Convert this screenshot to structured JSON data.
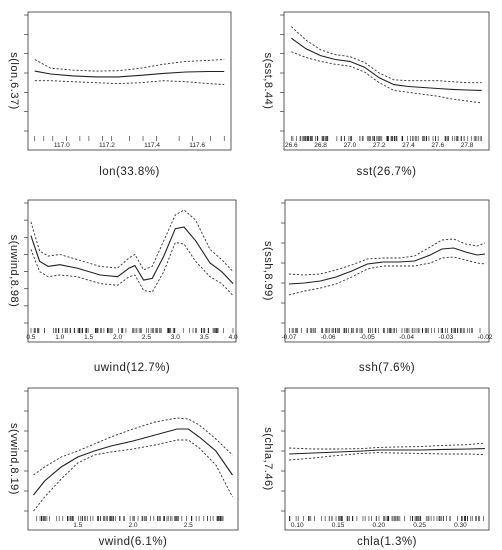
{
  "chart_data": [
    {
      "type": "line",
      "xlabel": "lon(33.8%)",
      "ylabel": "s(lon,6.37)",
      "xlim": [
        116.85,
        117.75
      ],
      "ylim": [
        -3,
        3
      ],
      "xticks": [
        117.0,
        117.2,
        117.4,
        117.6
      ],
      "xtick_labels": [
        "117.0",
        "117.2",
        "117.4",
        "117.6"
      ],
      "yticks": [
        -3,
        -2,
        -1,
        0,
        1,
        2,
        3
      ],
      "grid": false,
      "x": [
        116.88,
        116.95,
        117.05,
        117.15,
        117.25,
        117.35,
        117.45,
        117.55,
        117.65,
        117.72
      ],
      "fit": [
        0.1,
        -0.05,
        -0.15,
        -0.2,
        -0.2,
        -0.12,
        -0.02,
        0.05,
        0.08,
        0.08
      ],
      "upper": [
        0.7,
        0.25,
        0.15,
        0.1,
        0.12,
        0.25,
        0.45,
        0.6,
        0.65,
        0.7
      ],
      "lower": [
        -0.4,
        -0.4,
        -0.45,
        -0.5,
        -0.55,
        -0.5,
        -0.4,
        -0.45,
        -0.55,
        -0.6
      ],
      "rug": [
        116.88,
        116.92,
        116.96,
        117.02,
        117.08,
        117.12,
        117.18,
        117.22,
        117.3,
        117.36,
        117.42,
        117.52,
        117.58,
        117.66,
        117.72
      ]
    },
    {
      "type": "line",
      "xlabel": "sst(26.7%)",
      "ylabel": "s(sst,8.44)",
      "xlim": [
        26.55,
        27.95
      ],
      "ylim": [
        -3,
        3
      ],
      "xticks": [
        26.6,
        26.8,
        27.0,
        27.2,
        27.4,
        27.6,
        27.8
      ],
      "xtick_labels": [
        "26.6",
        "26.8",
        "27.0",
        "27.2",
        "27.4",
        "27.6",
        "27.8"
      ],
      "yticks": [
        -3,
        -2,
        -1,
        0,
        1,
        2,
        3
      ],
      "grid": false,
      "x": [
        26.6,
        26.7,
        26.8,
        26.9,
        27.0,
        27.1,
        27.2,
        27.3,
        27.4,
        27.5,
        27.6,
        27.7,
        27.8,
        27.9
      ],
      "fit": [
        1.8,
        1.25,
        0.9,
        0.7,
        0.6,
        0.3,
        -0.25,
        -0.6,
        -0.7,
        -0.75,
        -0.8,
        -0.85,
        -0.88,
        -0.9
      ],
      "upper": [
        2.4,
        1.7,
        1.2,
        0.95,
        0.85,
        0.55,
        0.0,
        -0.35,
        -0.4,
        -0.4,
        -0.4,
        -0.45,
        -0.5,
        -0.5
      ],
      "lower": [
        1.1,
        0.8,
        0.6,
        0.45,
        0.35,
        0.05,
        -0.5,
        -0.9,
        -1.0,
        -1.1,
        -1.2,
        -1.35,
        -1.45,
        -1.55
      ],
      "rug_range": [
        26.6,
        27.9
      ],
      "rug_count": 120
    },
    {
      "type": "line",
      "xlabel": "uwind(12.7%)",
      "ylabel": "s(uwind,8.98)",
      "xlim": [
        0.45,
        4.05
      ],
      "ylim": [
        -3,
        4
      ],
      "xticks": [
        0.5,
        1.0,
        1.5,
        2.0,
        2.5,
        3.0,
        3.5,
        4.0
      ],
      "xtick_labels": [
        "0.5",
        "1.0",
        "1.5",
        "2.0",
        "2.5",
        "3.0",
        "3.5",
        "4.0"
      ],
      "yticks": [
        -3,
        -2,
        -1,
        0,
        1,
        2,
        3,
        4
      ],
      "grid": false,
      "x": [
        0.5,
        0.65,
        0.8,
        1.0,
        1.3,
        1.7,
        2.0,
        2.2,
        2.3,
        2.45,
        2.6,
        2.8,
        3.0,
        3.15,
        3.35,
        3.6,
        3.8,
        4.0
      ],
      "fit": [
        2.1,
        0.6,
        0.3,
        0.4,
        0.2,
        -0.2,
        -0.3,
        0.2,
        0.35,
        -0.5,
        -0.4,
        0.9,
        2.5,
        2.6,
        1.8,
        0.5,
        0.0,
        -0.7
      ],
      "upper": [
        2.9,
        1.2,
        0.9,
        1.0,
        0.7,
        0.3,
        0.2,
        0.8,
        1.0,
        0.1,
        0.3,
        1.8,
        3.3,
        3.6,
        3.0,
        1.3,
        0.7,
        0.0
      ],
      "lower": [
        1.3,
        0.0,
        -0.3,
        -0.2,
        -0.3,
        -0.7,
        -0.8,
        -0.3,
        -0.2,
        -1.1,
        -1.2,
        0.0,
        1.7,
        1.6,
        0.6,
        -0.3,
        -0.7,
        -1.4
      ],
      "rug_range": [
        0.5,
        4.0
      ],
      "rug_count": 110
    },
    {
      "type": "line",
      "xlabel": "ssh(7.6%)",
      "ylabel": "s(ssh,8.99)",
      "xlim": [
        -0.071,
        -0.019
      ],
      "ylim": [
        -3,
        3
      ],
      "xticks": [
        -0.07,
        -0.06,
        -0.05,
        -0.04,
        -0.03,
        -0.02
      ],
      "xtick_labels": [
        "-0.07",
        "-0.06",
        "-0.05",
        "-0.04",
        "-0.03",
        "-0.02"
      ],
      "yticks": [
        -3,
        -2,
        -1,
        0,
        1,
        2,
        3
      ],
      "grid": false,
      "x": [
        -0.07,
        -0.066,
        -0.062,
        -0.058,
        -0.054,
        -0.05,
        -0.046,
        -0.042,
        -0.038,
        -0.034,
        -0.031,
        -0.028,
        -0.025,
        -0.022,
        -0.02
      ],
      "fit": [
        -1.05,
        -1.0,
        -0.9,
        -0.7,
        -0.4,
        -0.05,
        0.05,
        0.05,
        0.1,
        0.4,
        0.7,
        0.75,
        0.55,
        0.4,
        0.45
      ],
      "upper": [
        -0.55,
        -0.6,
        -0.55,
        -0.35,
        -0.1,
        0.2,
        0.25,
        0.25,
        0.35,
        0.8,
        1.15,
        1.2,
        0.95,
        0.85,
        1.0
      ],
      "lower": [
        -1.6,
        -1.4,
        -1.25,
        -1.05,
        -0.7,
        -0.3,
        -0.15,
        -0.15,
        -0.15,
        0.0,
        0.25,
        0.3,
        0.15,
        0.0,
        -0.05
      ],
      "rug_range": [
        -0.07,
        -0.02
      ],
      "rug_count": 110
    },
    {
      "type": "line",
      "xlabel": "vwind(6.1%)",
      "ylabel": "s(vwind,8.19)",
      "xlim": [
        1.05,
        2.95
      ],
      "ylim": [
        -3,
        3
      ],
      "xticks": [
        1.5,
        2.0,
        2.5
      ],
      "xtick_labels": [
        "1.5",
        "2.0",
        "2.5"
      ],
      "yticks": [
        -3,
        -2,
        -1,
        0,
        1,
        2,
        3
      ],
      "grid": false,
      "x": [
        1.1,
        1.2,
        1.35,
        1.5,
        1.65,
        1.8,
        2.0,
        2.2,
        2.4,
        2.5,
        2.6,
        2.75,
        2.9
      ],
      "fit": [
        -2.2,
        -1.5,
        -0.8,
        -0.3,
        0.0,
        0.25,
        0.5,
        0.8,
        1.1,
        1.1,
        0.7,
        0.0,
        -1.2
      ],
      "upper": [
        -1.2,
        -0.8,
        -0.3,
        0.0,
        0.35,
        0.7,
        1.1,
        1.45,
        1.65,
        1.6,
        1.3,
        0.6,
        -0.2
      ],
      "lower": [
        -3.0,
        -2.3,
        -1.4,
        -0.6,
        -0.2,
        -0.05,
        0.1,
        0.3,
        0.55,
        0.55,
        0.15,
        -0.7,
        -2.3
      ],
      "rug_range": [
        1.1,
        2.85
      ],
      "rug_count": 110
    },
    {
      "type": "line",
      "xlabel": "chla(1.3%)",
      "ylabel": "s(chla,7.46)",
      "xlim": [
        0.085,
        0.335
      ],
      "ylim": [
        -3,
        3
      ],
      "xticks": [
        0.1,
        0.15,
        0.2,
        0.25,
        0.3
      ],
      "xtick_labels": [
        "0.10",
        "0.15",
        "0.20",
        "0.25",
        "0.30"
      ],
      "yticks": [
        -3,
        -2,
        -1,
        0,
        1,
        2,
        3
      ],
      "grid": false,
      "x": [
        0.09,
        0.12,
        0.15,
        0.18,
        0.2,
        0.22,
        0.25,
        0.28,
        0.31,
        0.33
      ],
      "fit": [
        -0.15,
        -0.1,
        -0.05,
        0.0,
        0.05,
        0.05,
        0.05,
        0.08,
        0.1,
        0.12
      ],
      "upper": [
        0.15,
        0.1,
        0.1,
        0.12,
        0.18,
        0.2,
        0.22,
        0.28,
        0.32,
        0.4
      ],
      "lower": [
        -0.45,
        -0.35,
        -0.22,
        -0.12,
        -0.08,
        -0.1,
        -0.12,
        -0.15,
        -0.15,
        -0.18
      ],
      "rug_range": [
        0.09,
        0.33
      ],
      "rug_count": 100
    }
  ]
}
